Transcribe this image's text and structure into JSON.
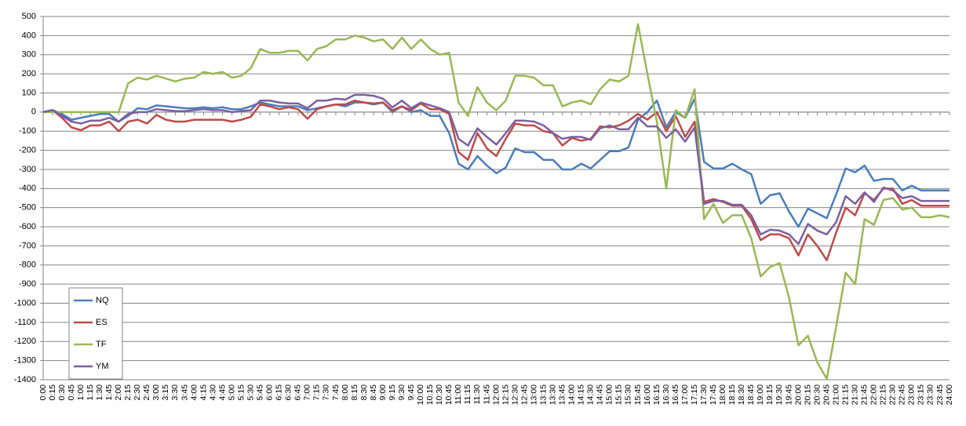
{
  "chart_data": {
    "type": "line",
    "categories": [
      "0:00",
      "0:15",
      "0:30",
      "0:45",
      "1:00",
      "1:15",
      "1:30",
      "1:45",
      "2:00",
      "2:15",
      "2:30",
      "2:45",
      "3:00",
      "3:15",
      "3:30",
      "3:45",
      "4:00",
      "4:15",
      "4:30",
      "4:45",
      "5:00",
      "5:15",
      "5:30",
      "5:45",
      "6:00",
      "6:15",
      "6:30",
      "6:45",
      "7:00",
      "7:15",
      "7:30",
      "7:45",
      "8:00",
      "8:15",
      "8:30",
      "8:45",
      "9:00",
      "9:15",
      "9:30",
      "9:45",
      "10:00",
      "10:15",
      "10:30",
      "10:45",
      "11:00",
      "11:15",
      "11:30",
      "11:45",
      "12:00",
      "12:15",
      "12:30",
      "12:45",
      "13:00",
      "13:15",
      "13:30",
      "13:45",
      "14:00",
      "14:15",
      "14:30",
      "14:45",
      "15:00",
      "15:15",
      "15:30",
      "15:45",
      "16:00",
      "16:15",
      "16:30",
      "16:45",
      "17:00",
      "17:15",
      "17:30",
      "17:45",
      "18:00",
      "18:15",
      "18:30",
      "18:45",
      "19:00",
      "19:15",
      "19:30",
      "19:45",
      "20:00",
      "20:15",
      "20:30",
      "20:45",
      "21:00",
      "21:15",
      "21:30",
      "21:45",
      "22:00",
      "22:15",
      "22:30",
      "22:45",
      "23:00",
      "23:15",
      "23:30",
      "23:45",
      "24:00"
    ],
    "series": [
      {
        "name": "NQ",
        "color": "#4a7ebb",
        "values": [
          0,
          10,
          -10,
          -40,
          -30,
          -20,
          -10,
          -10,
          -50,
          -20,
          20,
          15,
          35,
          30,
          25,
          20,
          20,
          25,
          20,
          25,
          15,
          15,
          30,
          50,
          40,
          30,
          30,
          30,
          10,
          20,
          30,
          40,
          30,
          50,
          50,
          40,
          50,
          0,
          30,
          0,
          10,
          -20,
          -20,
          -110,
          -270,
          -300,
          -230,
          -280,
          -320,
          -290,
          -190,
          -210,
          -210,
          -250,
          -250,
          -300,
          -300,
          -270,
          -295,
          -250,
          -205,
          -205,
          -185,
          -40,
          0,
          60,
          -80,
          0,
          -30,
          70,
          -260,
          -295,
          -295,
          -270,
          -300,
          -325,
          -480,
          -435,
          -425,
          -520,
          -600,
          -505,
          -530,
          -555,
          -430,
          -295,
          -315,
          -280,
          -360,
          -350,
          -350,
          -410,
          -385,
          -410,
          -410,
          -410,
          -410
        ]
      },
      {
        "name": "ES",
        "color": "#be4b48",
        "values": [
          0,
          10,
          -30,
          -80,
          -95,
          -70,
          -70,
          -50,
          -100,
          -50,
          -40,
          -60,
          -15,
          -40,
          -50,
          -50,
          -40,
          -40,
          -40,
          -40,
          -50,
          -40,
          -25,
          40,
          30,
          15,
          25,
          15,
          -35,
          15,
          30,
          40,
          40,
          60,
          50,
          45,
          50,
          10,
          30,
          10,
          45,
          15,
          15,
          -10,
          -210,
          -250,
          -110,
          -190,
          -230,
          -140,
          -60,
          -70,
          -70,
          -100,
          -110,
          -175,
          -135,
          -150,
          -140,
          -75,
          -80,
          -70,
          -45,
          -10,
          -40,
          0,
          -100,
          -20,
          -130,
          -50,
          -470,
          -455,
          -470,
          -490,
          -490,
          -560,
          -670,
          -640,
          -640,
          -660,
          -750,
          -640,
          -700,
          -775,
          -630,
          -500,
          -540,
          -425,
          -460,
          -400,
          -400,
          -480,
          -460,
          -490,
          -490,
          -490,
          -490
        ]
      },
      {
        "name": "TF",
        "color": "#98b954",
        "values": [
          0,
          0,
          0,
          0,
          0,
          0,
          0,
          0,
          0,
          150,
          180,
          170,
          190,
          175,
          160,
          175,
          180,
          210,
          200,
          210,
          180,
          190,
          230,
          330,
          310,
          310,
          320,
          320,
          270,
          330,
          345,
          380,
          380,
          400,
          390,
          370,
          380,
          330,
          390,
          330,
          380,
          330,
          300,
          310,
          50,
          -20,
          130,
          50,
          10,
          60,
          190,
          190,
          180,
          140,
          140,
          30,
          50,
          60,
          40,
          120,
          170,
          160,
          190,
          460,
          200,
          -50,
          -400,
          10,
          -30,
          120,
          -560,
          -480,
          -580,
          -540,
          -540,
          -660,
          -860,
          -810,
          -790,
          -970,
          -1220,
          -1170,
          -1310,
          -1395,
          -1120,
          -840,
          -900,
          -560,
          -590,
          -460,
          -450,
          -510,
          -500,
          -550,
          -550,
          -540,
          -550
        ]
      },
      {
        "name": "YM",
        "color": "#7d60a0",
        "values": [
          0,
          10,
          -20,
          -50,
          -60,
          -45,
          -45,
          -30,
          -50,
          -10,
          0,
          0,
          15,
          10,
          5,
          5,
          10,
          15,
          10,
          10,
          0,
          5,
          10,
          60,
          60,
          50,
          45,
          45,
          20,
          60,
          60,
          70,
          65,
          90,
          90,
          85,
          70,
          25,
          60,
          20,
          50,
          35,
          20,
          0,
          -140,
          -175,
          -85,
          -130,
          -170,
          -110,
          -45,
          -45,
          -50,
          -70,
          -110,
          -140,
          -130,
          -130,
          -145,
          -85,
          -70,
          -90,
          -90,
          -30,
          -75,
          -75,
          -135,
          -90,
          -155,
          -80,
          -480,
          -465,
          -465,
          -485,
          -485,
          -540,
          -640,
          -615,
          -620,
          -640,
          -690,
          -585,
          -620,
          -640,
          -575,
          -440,
          -480,
          -420,
          -470,
          -395,
          -410,
          -450,
          -440,
          -465,
          -465,
          -465,
          -465
        ]
      }
    ],
    "ylim": [
      -1400,
      500
    ],
    "yticks": [
      500,
      400,
      300,
      200,
      100,
      0,
      -100,
      -200,
      -300,
      -400,
      -500,
      -600,
      -700,
      -800,
      -900,
      -1000,
      -1100,
      -1200,
      -1300,
      -1400
    ],
    "grid": true,
    "legend": "lower left"
  }
}
